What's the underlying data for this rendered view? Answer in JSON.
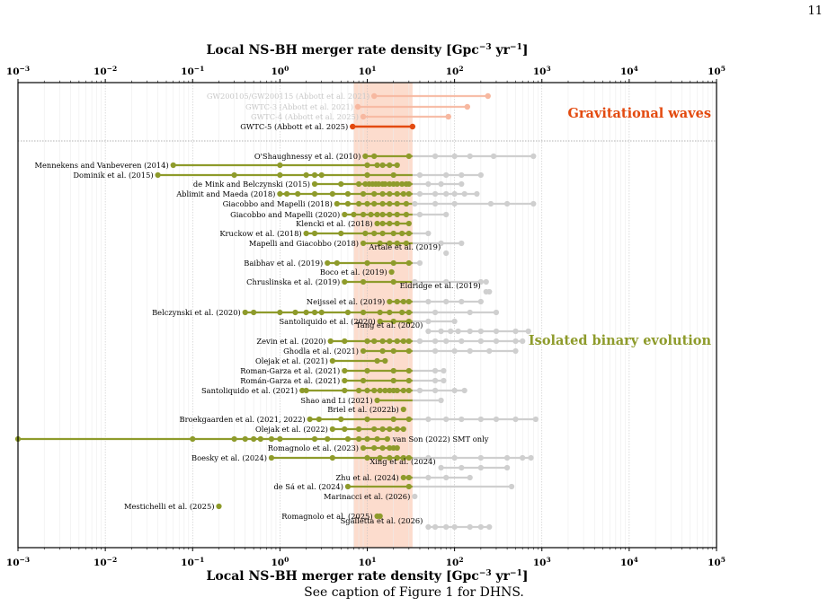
{
  "page_number": "11",
  "caption": "See caption of Figure 1 for DHNS.",
  "colors": {
    "gw": "#e34a0f",
    "gw_light": "#f7b8a0",
    "gw_faint": "#c8c8c8",
    "isolated": "#8e9b2b",
    "grey": "#cfcfcf",
    "band": "#fcd8c8"
  },
  "chart_data": {
    "type": "scatter",
    "x_scale": "log",
    "xlim": [
      0.001,
      100000
    ],
    "x_tick_labels": [
      "10−3",
      "10−2",
      "10−1",
      "100",
      "101",
      "102",
      "103",
      "104",
      "105"
    ],
    "xlabel_top": "Local NS-BH merger rate density [Gpc−3 yr−1]",
    "xlabel_bottom": "Local NS-BH merger rate density [Gpc−3 yr−1]",
    "grid": true,
    "band": [
      7,
      33
    ],
    "sections": [
      {
        "label": "Gravitational waves",
        "color": "#e34a0f"
      },
      {
        "label": "Isolated binary evolution",
        "color": "#8e9b2b"
      }
    ],
    "gw_rows": [
      {
        "label": "GW200105/GW200115 (Abbott et al. 2021)",
        "range": [
          12,
          241
        ],
        "style": "faint"
      },
      {
        "label": "GWTC-3 (Abbott et al. 2021)",
        "range": [
          7.8,
          140
        ],
        "style": "faint"
      },
      {
        "label": "GWTC-4 (Abbott et al. 2025)",
        "range": [
          9,
          85
        ],
        "style": "faint"
      },
      {
        "label": "GWTC-5 (Abbott et al. 2025)",
        "range": [
          6.8,
          33
        ],
        "style": "current"
      }
    ],
    "isolated_rows": [
      {
        "label": "O'Shaughnessy et al. (2010)",
        "points": [
          9.5,
          12,
          30,
          60,
          100,
          150,
          280,
          800
        ]
      },
      {
        "label": "Mennekens and Vanbeveren (2014)",
        "points": [
          0.06,
          1,
          10,
          13,
          15,
          18,
          22
        ]
      },
      {
        "label": "Dominik et al. (2015)",
        "points": [
          0.04,
          0.3,
          1,
          2,
          2.5,
          3,
          10,
          20,
          40,
          80,
          120,
          200
        ]
      },
      {
        "label": "de Mink and Belczynski (2015)",
        "points": [
          2.5,
          5,
          8,
          9.5,
          10.5,
          11.5,
          12.5,
          13.5,
          15,
          16,
          18,
          20,
          22,
          25,
          28,
          30,
          50,
          70,
          120
        ]
      },
      {
        "label": "Ablimit and Maeda (2018)",
        "points": [
          1,
          1.2,
          1.6,
          2.5,
          4,
          6,
          9,
          12,
          15,
          18,
          22,
          26,
          30,
          40,
          60,
          80,
          100,
          130,
          180
        ]
      },
      {
        "label": "Giacobbo and Mapelli (2018)",
        "points": [
          4.5,
          6,
          8,
          10,
          12,
          15,
          18,
          22,
          28,
          35,
          60,
          100,
          260,
          400,
          800
        ]
      },
      {
        "label": "Giacobbo and Mapelli (2020)",
        "points": [
          5.5,
          7,
          9,
          11,
          13,
          15,
          18,
          22,
          28,
          40,
          80
        ]
      },
      {
        "label": "Klencki et al. (2018)",
        "points": [
          13,
          15,
          18,
          22,
          30
        ]
      },
      {
        "label": "Kruckow et al. (2018)",
        "points": [
          2,
          2.5,
          5,
          9.5,
          12,
          15,
          20,
          25,
          30,
          50
        ]
      },
      {
        "label": "Mapelli and Giacobbo (2018)",
        "points": [
          9,
          14,
          18,
          22,
          28,
          70,
          120
        ]
      },
      {
        "label": "Artale et al. (2019)",
        "points": [
          80
        ]
      },
      {
        "label": "Baibhav et al. (2019)",
        "points": [
          3.5,
          4.5,
          10,
          20,
          30,
          40
        ]
      },
      {
        "label": "Boco et al. (2019)",
        "points": [
          19
        ]
      },
      {
        "label": "Chruslinska et al. (2019)",
        "points": [
          5.5,
          9,
          20,
          35,
          80,
          200,
          230
        ]
      },
      {
        "label": "Eldridge et al. (2019)",
        "points": [
          230,
          250
        ]
      },
      {
        "label": "Neijssel et al. (2019)",
        "points": [
          18,
          22,
          26,
          30,
          50,
          80,
          120,
          200
        ]
      },
      {
        "label": "Belczynski et al. (2020)",
        "points": [
          0.4,
          0.5,
          1,
          1.5,
          2,
          2.5,
          3,
          6,
          9,
          14,
          18,
          25,
          30,
          60,
          150,
          300
        ]
      },
      {
        "label": "Santoliquido et al. (2020)",
        "points": [
          14,
          20,
          30,
          50,
          100
        ]
      },
      {
        "label": "Tang et al. (2020)",
        "points": [
          50,
          70,
          90,
          110,
          150,
          200,
          300,
          500,
          700
        ]
      },
      {
        "label": "Zevin et al. (2020)",
        "points": [
          3.8,
          5.5,
          10,
          12,
          15,
          18,
          22,
          26,
          30,
          40,
          60,
          80,
          120,
          200,
          300,
          500,
          600
        ]
      },
      {
        "label": "Ghodla et al. (2021)",
        "points": [
          9,
          15,
          20,
          30,
          60,
          100,
          150,
          250,
          500
        ]
      },
      {
        "label": "Olejak et al. (2021)",
        "points": [
          4,
          13,
          16
        ]
      },
      {
        "label": "Roman-Garza et al. (2021)",
        "points": [
          5.5,
          10,
          20,
          30,
          60,
          75
        ]
      },
      {
        "label": "Román-Garza et al. (2021)",
        "points": [
          5.5,
          9,
          20,
          30,
          60,
          75
        ]
      },
      {
        "label": "Santoliquido et al. (2021)",
        "points": [
          1.8,
          2,
          5.5,
          8,
          10,
          12,
          14,
          16,
          18,
          20,
          22,
          26,
          30,
          40,
          60,
          100,
          130
        ]
      },
      {
        "label": "Shao and Li (2021)",
        "points": [
          13,
          70
        ]
      },
      {
        "label": "Briel et al. (2022b)",
        "points": [
          26
        ]
      },
      {
        "label": "Broekgaarden et al. (2021, 2022)",
        "points": [
          2.2,
          2.8,
          5,
          10,
          20,
          30,
          50,
          80,
          120,
          200,
          300,
          500,
          850
        ]
      },
      {
        "label": "Olejak et al. (2022)",
        "points": [
          4,
          5.5,
          8,
          12,
          15,
          18,
          22,
          26
        ]
      },
      {
        "label": "van Son (2022) SMT only",
        "points": [
          0.001,
          0.1,
          0.3,
          0.4,
          0.5,
          0.6,
          0.8,
          1,
          2.5,
          3.5,
          6,
          8,
          10,
          13,
          17
        ]
      },
      {
        "label": "Romagnolo et al. (2023)",
        "points": [
          9,
          12,
          15,
          18,
          20,
          22
        ]
      },
      {
        "label": "Boesky et al. (2024)",
        "points": [
          0.8,
          4,
          10,
          14,
          18,
          22,
          26,
          30,
          50,
          100,
          200,
          400,
          600,
          750
        ]
      },
      {
        "label": "Xing et al. (2024)",
        "points": [
          70,
          120,
          200,
          400
        ]
      },
      {
        "label": "Zhu et al. (2024)",
        "points": [
          26,
          30,
          50,
          80,
          150
        ]
      },
      {
        "label": "de Sá et al. (2024)",
        "points": [
          6,
          30,
          450
        ]
      },
      {
        "label": "Marinacci et al. (2026)",
        "points": [
          35
        ]
      },
      {
        "label": "Mestichelli et al. (2025)",
        "points": [
          0.2
        ]
      },
      {
        "label": "Romagnolo et al. (2025)",
        "points": [
          13,
          14
        ]
      },
      {
        "label": "Sgalletta et al. (2026)",
        "points": [
          50,
          60,
          80,
          100,
          150,
          200,
          250
        ]
      }
    ]
  }
}
